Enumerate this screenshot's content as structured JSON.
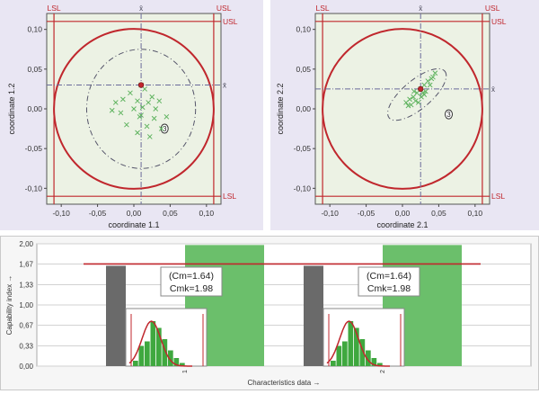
{
  "chart_data": [
    {
      "type": "scatter",
      "subtype": "position-tolerance-circle",
      "xlabel": "coordinate 1.1",
      "ylabel": "coordinate 1.2",
      "xlim": [
        -0.12,
        0.12
      ],
      "ylim": [
        -0.12,
        0.12
      ],
      "xticks": [
        "-0,10",
        "-0,05",
        "0,00",
        "0,05",
        "0,10"
      ],
      "yticks": [
        "0,10",
        "0,05",
        "0,00",
        "-0,05",
        "-0,10"
      ],
      "limit_labels": {
        "lsl": "LSL",
        "usl": "USL"
      },
      "axis_marker": "x̄",
      "tolerance_radius": 0.11,
      "mean": [
        0.01,
        0.03
      ],
      "ellipse": {
        "cx": 0.01,
        "cy": 0.0,
        "rx": 0.075,
        "ry": 0.075,
        "angle": 0
      },
      "ellipse_label": "3",
      "points": [
        [
          0.01,
          0.03
        ],
        [
          0.015,
          0.025
        ],
        [
          -0.005,
          0.02
        ],
        [
          0.025,
          0.015
        ],
        [
          -0.015,
          0.012
        ],
        [
          0.005,
          0.01
        ],
        [
          0.02,
          0.008
        ],
        [
          0.035,
          0.01
        ],
        [
          -0.025,
          0.008
        ],
        [
          0.0,
          0.0
        ],
        [
          0.012,
          0.002
        ],
        [
          0.03,
          0.0
        ],
        [
          -0.018,
          -0.005
        ],
        [
          0.008,
          -0.01
        ],
        [
          0.028,
          -0.012
        ],
        [
          0.045,
          -0.01
        ],
        [
          -0.01,
          -0.02
        ],
        [
          0.018,
          -0.022
        ],
        [
          0.038,
          -0.025
        ],
        [
          0.005,
          -0.03
        ],
        [
          0.022,
          -0.035
        ],
        [
          0.01,
          -0.008
        ],
        [
          -0.03,
          -0.002
        ]
      ]
    },
    {
      "type": "scatter",
      "subtype": "position-tolerance-circle",
      "xlabel": "coordinate 2.1",
      "ylabel": "coordinate 2.2",
      "xlim": [
        -0.12,
        0.12
      ],
      "ylim": [
        -0.12,
        0.12
      ],
      "xticks": [
        "-0,10",
        "-0,05",
        "0,00",
        "0,05",
        "0,10"
      ],
      "yticks": [
        "0,10",
        "0,05",
        "0,00",
        "-0,05",
        "-0,10"
      ],
      "limit_labels": {
        "lsl": "LSL",
        "usl": "USL"
      },
      "axis_marker": "x̄",
      "tolerance_radius": 0.11,
      "mean": [
        0.025,
        0.025
      ],
      "ellipse": {
        "cx": 0.02,
        "cy": 0.018,
        "rx": 0.05,
        "ry": 0.018,
        "angle": 40
      },
      "ellipse_label": "3",
      "points": [
        [
          0.025,
          0.025
        ],
        [
          0.03,
          0.03
        ],
        [
          0.035,
          0.035
        ],
        [
          0.04,
          0.038
        ],
        [
          0.045,
          0.045
        ],
        [
          0.02,
          0.02
        ],
        [
          0.015,
          0.015
        ],
        [
          0.01,
          0.012
        ],
        [
          0.018,
          0.01
        ],
        [
          0.028,
          0.02
        ],
        [
          0.032,
          0.022
        ],
        [
          0.022,
          0.008
        ],
        [
          0.012,
          0.005
        ],
        [
          0.005,
          0.008
        ],
        [
          0.038,
          0.03
        ],
        [
          0.026,
          0.015
        ],
        [
          0.016,
          0.022
        ],
        [
          0.042,
          0.04
        ],
        [
          0.008,
          0.004
        ],
        [
          0.03,
          0.018
        ]
      ]
    },
    {
      "type": "bar",
      "subtype": "capability-index",
      "ylabel": "Capability index →",
      "xlabel": "Characteristics data →",
      "ylim": [
        0,
        2.0
      ],
      "yticks": [
        "2,00",
        "1,67",
        "1,33",
        "1,00",
        "0,67",
        "0,33",
        "0,00"
      ],
      "limit_line": 1.67,
      "categories": [
        "1",
        "2"
      ],
      "series": [
        {
          "values": [
            1.64,
            1.64
          ]
        },
        {
          "values": [
            1.98,
            1.98
          ]
        }
      ],
      "annotations": [
        {
          "cm": "(Cm=1.64)",
          "cmk": "Cmk=1.98"
        },
        {
          "cm": "(Cm=1.64)",
          "cmk": "Cmk=1.98"
        }
      ],
      "histogram_values": [
        0.12,
        0.45,
        0.55,
        1.0,
        0.85,
        0.6,
        0.35,
        0.18,
        0.07
      ]
    }
  ]
}
